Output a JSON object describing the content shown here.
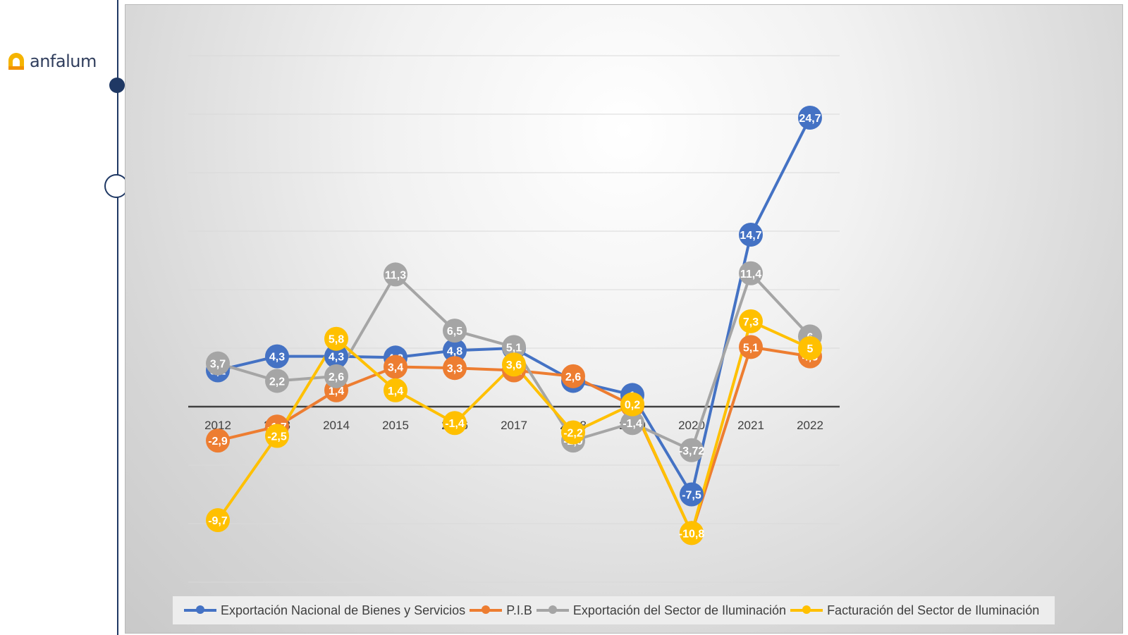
{
  "brand": {
    "logo_text": "anfalum"
  },
  "chart_data": {
    "type": "line",
    "categories": [
      "2012",
      "2013",
      "2014",
      "2015",
      "2016",
      "2017",
      "2018",
      "2019",
      "2020",
      "2021",
      "2022"
    ],
    "ylim": [
      -15,
      30
    ],
    "grid": true,
    "legend_position": "bottom",
    "series": [
      {
        "name": "Exportación Nacional de Bienes y Servicios",
        "color": "#4472c4",
        "values": [
          3.1,
          4.3,
          4.3,
          4.2,
          4.8,
          5.0,
          2.2,
          1,
          -7.5,
          14.7,
          24.7
        ],
        "labels": [
          "3,1",
          "4,3",
          "4,3",
          "4,2",
          "4,8",
          "5,0",
          "2,2",
          "1",
          "-7,5",
          "14,7",
          "24,7"
        ]
      },
      {
        "name": "P.I.B",
        "color": "#ed7d31",
        "values": [
          -2.9,
          -1.7,
          1.4,
          3.4,
          3.3,
          3.1,
          2.6,
          0.1,
          -10.8,
          5.1,
          4.3
        ],
        "labels": [
          "-2,9",
          "-1,7",
          "1,4",
          "3,4",
          "3,3",
          "3,1",
          "2,6",
          "0,1",
          "-10,8",
          "5,1",
          "4,3"
        ]
      },
      {
        "name": "Exportación del Sector de Iluminación",
        "color": "#a5a5a5",
        "values": [
          3.7,
          2.2,
          2.6,
          11.3,
          6.5,
          5.1,
          -2.9,
          -1.4,
          -3.72,
          11.4,
          6
        ],
        "labels": [
          "3,7",
          "2,2",
          "2,6",
          "11,3",
          "6,5",
          "5,1",
          "-2,9",
          "-1,4",
          "-3,72",
          "11,4",
          "6"
        ]
      },
      {
        "name": "Facturación del Sector de Iluminación",
        "color": "#ffc000",
        "values": [
          -9.7,
          -2.5,
          5.8,
          1.4,
          -1.4,
          3.6,
          -2.2,
          0.2,
          -10.8,
          7.3,
          5
        ],
        "labels": [
          "-9,7",
          "-2,5",
          "5,8",
          "1,4",
          "-1,4",
          "3,6",
          "-2,2",
          "0,2",
          "-10,8",
          "7,3",
          "5"
        ]
      }
    ]
  }
}
